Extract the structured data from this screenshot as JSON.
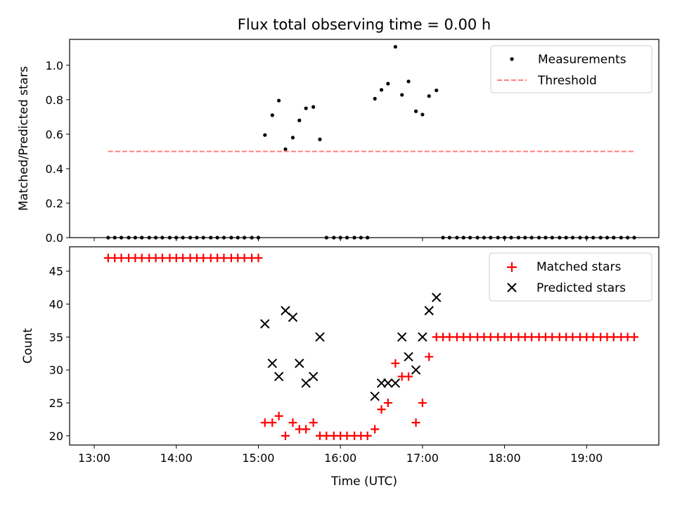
{
  "chart_data": {
    "title": "Flux total observing time = 0.00 h",
    "xlabel": "Time (UTC)",
    "x_ticks": [
      "13:00",
      "14:00",
      "15:00",
      "16:00",
      "17:00",
      "18:00",
      "19:00"
    ],
    "x_tick_hours": [
      13,
      14,
      15,
      16,
      17,
      18,
      19
    ],
    "xlim_hours": [
      12.7,
      19.88
    ],
    "panels": [
      {
        "type": "scatter",
        "ylabel": "Matched/Predicted stars",
        "ylim": [
          0,
          1.15
        ],
        "y_ticks": [
          0.0,
          0.2,
          0.4,
          0.6,
          0.8,
          1.0
        ],
        "y_tick_labels": [
          "0.0",
          "0.2",
          "0.4",
          "0.6",
          "0.8",
          "1.0"
        ],
        "legend": {
          "placement": "top-right",
          "entries": [
            "Measurements",
            "Threshold"
          ]
        },
        "series": [
          {
            "name": "Measurements",
            "marker": "dot",
            "color": "#000000",
            "x": [
              13.17,
              13.25,
              13.33,
              13.42,
              13.5,
              13.58,
              13.67,
              13.75,
              13.83,
              13.92,
              14.0,
              14.08,
              14.17,
              14.25,
              14.33,
              14.42,
              14.5,
              14.58,
              14.67,
              14.75,
              14.83,
              14.92,
              15.0,
              15.08,
              15.17,
              15.25,
              15.33,
              15.42,
              15.5,
              15.58,
              15.67,
              15.75,
              15.83,
              15.92,
              16.0,
              16.08,
              16.17,
              16.25,
              16.33,
              16.42,
              16.5,
              16.58,
              16.67,
              16.75,
              16.83,
              16.92,
              17.0,
              17.08,
              17.17,
              17.25,
              17.33,
              17.42,
              17.5,
              17.58,
              17.67,
              17.75,
              17.83,
              17.92,
              18.0,
              18.08,
              18.17,
              18.25,
              18.33,
              18.42,
              18.5,
              18.58,
              18.67,
              18.75,
              18.83,
              18.92,
              19.0,
              19.08,
              19.17,
              19.25,
              19.33,
              19.42,
              19.5,
              19.58
            ],
            "y": [
              0,
              0,
              0,
              0,
              0,
              0,
              0,
              0,
              0,
              0,
              0,
              0,
              0,
              0,
              0,
              0,
              0,
              0,
              0,
              0,
              0,
              0,
              0,
              0.595,
              0.71,
              0.795,
              0.513,
              0.58,
              0.68,
              0.75,
              0.758,
              0.57,
              0,
              0,
              0,
              0,
              0,
              0,
              0,
              0.806,
              0.857,
              0.893,
              1.107,
              0.828,
              0.906,
              0.733,
              0.714,
              0.821,
              0.854,
              0,
              0,
              0,
              0,
              0,
              0,
              0,
              0,
              0,
              0,
              0,
              0,
              0,
              0,
              0,
              0,
              0,
              0,
              0,
              0,
              0,
              0,
              0,
              0,
              0,
              0,
              0,
              0,
              0
            ]
          },
          {
            "name": "Threshold",
            "style": "dashed",
            "color": "#ff7f7f",
            "x": [
              13.17,
              19.58
            ],
            "y": [
              0.5,
              0.5
            ]
          }
        ]
      },
      {
        "type": "scatter",
        "ylabel": "Count",
        "ylim": [
          18.6,
          48.7
        ],
        "y_ticks": [
          20,
          25,
          30,
          35,
          40,
          45
        ],
        "y_tick_labels": [
          "20",
          "25",
          "30",
          "35",
          "40",
          "45"
        ],
        "legend": {
          "placement": "top-right",
          "entries": [
            "Matched stars",
            "Predicted stars"
          ]
        },
        "series": [
          {
            "name": "Matched stars",
            "marker": "plus",
            "color": "#ff0000",
            "x": [
              13.17,
              13.25,
              13.33,
              13.42,
              13.5,
              13.58,
              13.67,
              13.75,
              13.83,
              13.92,
              14.0,
              14.08,
              14.17,
              14.25,
              14.33,
              14.42,
              14.5,
              14.58,
              14.67,
              14.75,
              14.83,
              14.92,
              15.0,
              15.08,
              15.17,
              15.25,
              15.33,
              15.42,
              15.5,
              15.58,
              15.67,
              15.75,
              15.83,
              15.92,
              16.0,
              16.08,
              16.17,
              16.25,
              16.33,
              16.42,
              16.5,
              16.58,
              16.67,
              16.75,
              16.83,
              16.92,
              17.0,
              17.08,
              17.17,
              17.25,
              17.33,
              17.42,
              17.5,
              17.58,
              17.67,
              17.75,
              17.83,
              17.92,
              18.0,
              18.08,
              18.17,
              18.25,
              18.33,
              18.42,
              18.5,
              18.58,
              18.67,
              18.75,
              18.83,
              18.92,
              19.0,
              19.08,
              19.17,
              19.25,
              19.33,
              19.42,
              19.5,
              19.58
            ],
            "y": [
              47,
              47,
              47,
              47,
              47,
              47,
              47,
              47,
              47,
              47,
              47,
              47,
              47,
              47,
              47,
              47,
              47,
              47,
              47,
              47,
              47,
              47,
              47,
              22,
              22,
              23,
              20,
              22,
              21,
              21,
              22,
              20,
              20,
              20,
              20,
              20,
              20,
              20,
              20,
              21,
              24,
              25,
              31,
              29,
              29,
              22,
              25,
              32,
              35,
              35,
              35,
              35,
              35,
              35,
              35,
              35,
              35,
              35,
              35,
              35,
              35,
              35,
              35,
              35,
              35,
              35,
              35,
              35,
              35,
              35,
              35,
              35,
              35,
              35,
              35,
              35,
              35,
              35
            ]
          },
          {
            "name": "Predicted stars",
            "marker": "x",
            "color": "#000000",
            "x": [
              15.08,
              15.17,
              15.25,
              15.33,
              15.42,
              15.5,
              15.58,
              15.67,
              15.75,
              16.42,
              16.5,
              16.58,
              16.67,
              16.75,
              16.83,
              16.92,
              17.0,
              17.08,
              17.17
            ],
            "y": [
              37,
              31,
              29,
              39,
              38,
              31,
              28,
              29,
              35,
              26,
              28,
              28,
              28,
              35,
              32,
              30,
              35,
              39,
              41
            ]
          }
        ]
      }
    ]
  }
}
